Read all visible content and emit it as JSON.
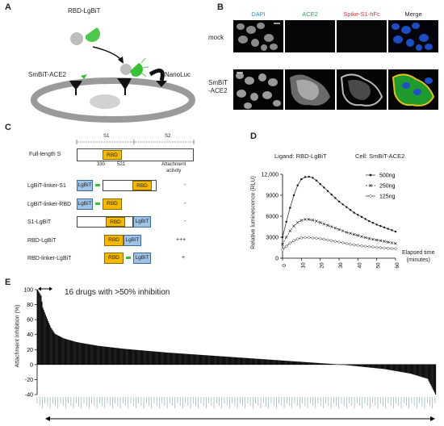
{
  "panels": {
    "a": "A",
    "b": "B",
    "c": "C",
    "d": "D",
    "e": "E"
  },
  "panel_a": {
    "rbd_lgbit": "RBD-LgBiT",
    "smbit_ace2": "SmBiT-ACE2",
    "nanoluc": "NanoLuc"
  },
  "panel_b": {
    "columns": [
      "DAPI",
      "ACE2",
      "Spike-S1-hFc",
      "Merge"
    ],
    "column_colors": [
      "#2f8fe6",
      "#2aa84a",
      "#e03030",
      "#222222"
    ],
    "rows": [
      "mock",
      "SmBiT\n-ACE2"
    ]
  },
  "panel_c": {
    "s1": "S1",
    "s2": "S2",
    "full_length": "Full-length S",
    "rbd": "RBD",
    "lgbit": "LgBiT",
    "pos_start": "330",
    "pos_end": "521",
    "activity_header": "Attachment\nactivity",
    "constructs": [
      {
        "name": "LgBiT-linker-S1",
        "activity": "-"
      },
      {
        "name": "LgBiT-linker-RBD",
        "activity": "-"
      },
      {
        "name": "S1-LgBiT",
        "activity": "-"
      },
      {
        "name": "RBD-LgBiT",
        "activity": "+++"
      },
      {
        "name": "RBD-linker-LgBiT",
        "activity": "+"
      }
    ]
  },
  "panel_d": {
    "ligand": "Ligand: RBD-LgBiT",
    "cell": "Cell: SmBiT-ACE2",
    "ylabel": "Relative luminescence (RLU)",
    "xlabel": "Elapsed time\n(minutes)",
    "yticks": [
      "0",
      "3000",
      "6000",
      "9000",
      "12,000"
    ],
    "xticks": [
      "0",
      "10",
      "20",
      "30",
      "40",
      "50",
      "60"
    ]
  },
  "panel_e": {
    "annotation": "16 drugs with >50% inhibition",
    "ylabel": "Attachment inhibition (%)",
    "yticks": [
      "100",
      "80",
      "60",
      "40",
      "20",
      "0",
      "-20",
      "-40"
    ]
  },
  "chart_data": [
    {
      "type": "line",
      "xlabel": "Elapsed time (minutes)",
      "ylabel": "Relative luminescence (RLU)",
      "xlim": [
        0,
        60
      ],
      "ylim": [
        0,
        12000
      ],
      "legend_position": "top-right",
      "x": [
        0,
        2,
        4,
        6,
        8,
        10,
        12,
        14,
        16,
        18,
        20,
        22,
        24,
        26,
        28,
        30,
        32,
        34,
        36,
        38,
        40,
        42,
        44,
        46,
        48,
        50,
        52,
        54,
        56,
        58,
        60
      ],
      "series": [
        {
          "name": "500ng",
          "marker": "dot",
          "values": [
            3000,
            5200,
            7200,
            9000,
            10400,
            11300,
            11600,
            11650,
            11500,
            11100,
            10600,
            10100,
            9600,
            9100,
            8600,
            8100,
            7700,
            7300,
            6900,
            6500,
            6200,
            5900,
            5600,
            5300,
            5050,
            4800,
            4600,
            4400,
            4200,
            4000,
            3800
          ]
        },
        {
          "name": "250ng",
          "marker": "x",
          "values": [
            2000,
            3000,
            3900,
            4600,
            5100,
            5400,
            5550,
            5550,
            5450,
            5300,
            5100,
            4900,
            4700,
            4500,
            4300,
            4100,
            3900,
            3700,
            3550,
            3400,
            3250,
            3100,
            2950,
            2800,
            2700,
            2600,
            2500,
            2400,
            2300,
            2200,
            2100
          ]
        },
        {
          "name": "125ng",
          "marker": "diamond",
          "values": [
            1200,
            1700,
            2150,
            2500,
            2750,
            2900,
            2950,
            2950,
            2900,
            2850,
            2800,
            2700,
            2600,
            2500,
            2400,
            2300,
            2200,
            2100,
            2000,
            1900,
            1850,
            1750,
            1700,
            1650,
            1600,
            1550,
            1500,
            1450,
            1400,
            1380,
            1350
          ]
        }
      ]
    },
    {
      "type": "bar",
      "ylabel": "Attachment inhibition (%)",
      "ylim": [
        -40,
        100
      ],
      "n_bars": 460,
      "curve_keypoints": [
        [
          0,
          100
        ],
        [
          1,
          98
        ],
        [
          2,
          96
        ],
        [
          3,
          94
        ],
        [
          4,
          92
        ],
        [
          5,
          84
        ],
        [
          6,
          76
        ],
        [
          8,
          70
        ],
        [
          10,
          64
        ],
        [
          15,
          50
        ],
        [
          20,
          41
        ],
        [
          30,
          35
        ],
        [
          45,
          30
        ],
        [
          70,
          25
        ],
        [
          100,
          21
        ],
        [
          150,
          16
        ],
        [
          200,
          12
        ],
        [
          250,
          8
        ],
        [
          300,
          4
        ],
        [
          350,
          0
        ],
        [
          400,
          -6
        ],
        [
          430,
          -12
        ],
        [
          450,
          -19
        ],
        [
          459,
          -40
        ]
      ]
    }
  ]
}
